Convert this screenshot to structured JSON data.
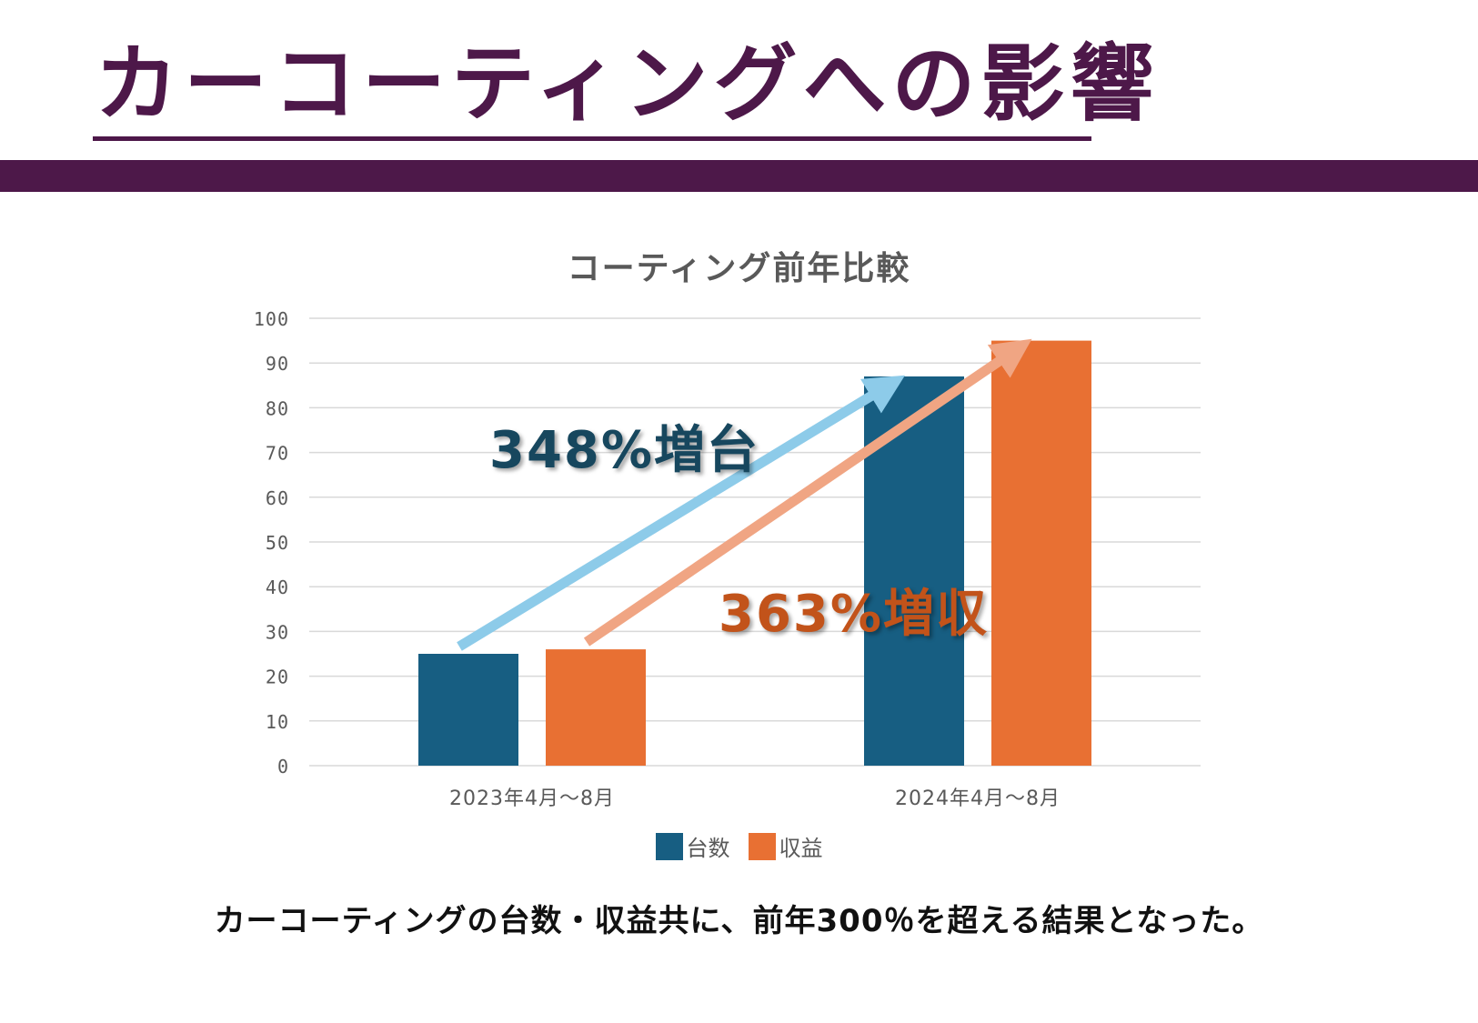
{
  "slide": {
    "title": "カーコーティングへの影響",
    "summary": "カーコーティングの台数・収益共に、前年300％を超える結果となった。"
  },
  "colors": {
    "brand_purple": "#4d1849",
    "series_units": "#175e82",
    "series_revenue": "#e87033",
    "arrow_units": "#8dcbe9",
    "arrow_revenue": "#f0a583",
    "callout_units": "#17475e",
    "callout_revenue": "#c2531a",
    "gridline": "#d9d9d9",
    "axis_text": "#595959"
  },
  "callouts": {
    "units": "348%増台",
    "revenue": "363%増収"
  },
  "chart_data": {
    "type": "bar",
    "title": "コーティング前年比較",
    "categories": [
      "2023年4月～8月",
      "2024年4月～8月"
    ],
    "series": [
      {
        "name": "台数",
        "values": [
          25,
          87
        ]
      },
      {
        "name": "収益",
        "values": [
          26,
          95
        ]
      }
    ],
    "xlabel": "",
    "ylabel": "",
    "ylim": [
      0,
      100
    ],
    "yticks": [
      0,
      10,
      20,
      30,
      40,
      50,
      60,
      70,
      80,
      90,
      100
    ],
    "grid": true,
    "legend": "bottom",
    "annotations": [
      {
        "text": "348%増台",
        "from": {
          "category": 0,
          "series": 0
        },
        "to": {
          "category": 1,
          "series": 0
        }
      },
      {
        "text": "363%増収",
        "from": {
          "category": 0,
          "series": 1
        },
        "to": {
          "category": 1,
          "series": 1
        }
      }
    ]
  }
}
